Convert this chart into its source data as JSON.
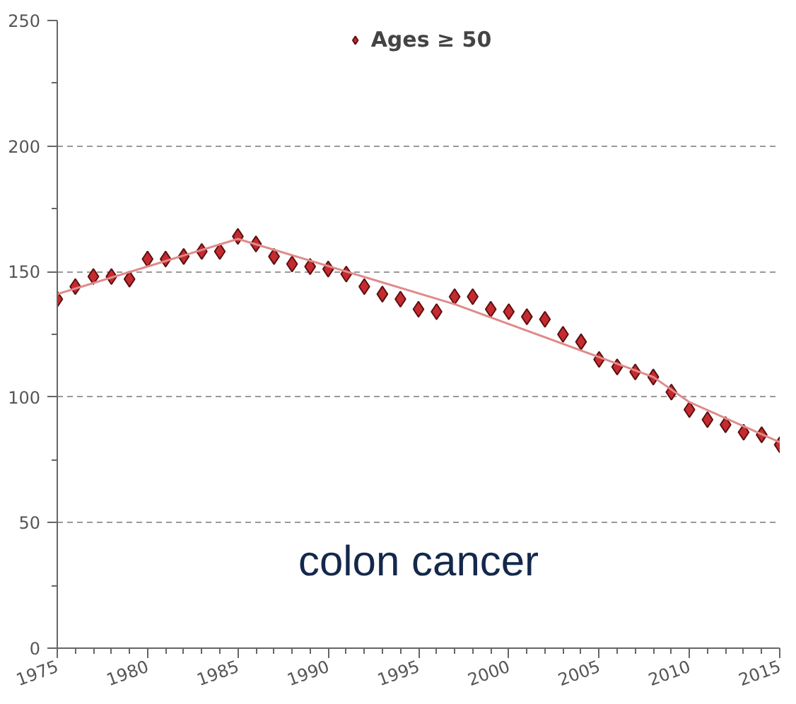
{
  "chart_data": {
    "type": "scatter",
    "x": [
      1975,
      1976,
      1977,
      1978,
      1979,
      1980,
      1981,
      1982,
      1983,
      1984,
      1985,
      1986,
      1987,
      1988,
      1989,
      1990,
      1991,
      1992,
      1993,
      1994,
      1995,
      1996,
      1997,
      1998,
      1999,
      2000,
      2001,
      2002,
      2003,
      2004,
      2005,
      2006,
      2007,
      2008,
      2009,
      2010,
      2011,
      2012,
      2013,
      2014,
      2015
    ],
    "series": [
      {
        "name": "Ages ≥ 50",
        "color": "#c62a2f",
        "marker": "diamond",
        "values": [
          139,
          144,
          148,
          148,
          147,
          155,
          155,
          156,
          158,
          158,
          164,
          161,
          156,
          153,
          152,
          151,
          149,
          144,
          141,
          139,
          135,
          134,
          140,
          140,
          135,
          134,
          132,
          131,
          125,
          122,
          115,
          112,
          110,
          108,
          102,
          95,
          91,
          89,
          86,
          85,
          81
        ]
      },
      {
        "type": "line",
        "color": "#e08a8a",
        "x": [
          1975,
          1985,
          1997,
          2008,
          2010,
          2015
        ],
        "values": [
          141,
          163,
          137,
          108,
          98,
          82
        ]
      }
    ],
    "xlim": [
      1975,
      2015
    ],
    "ylim": [
      0,
      250
    ],
    "xticks": [
      1975,
      1980,
      1985,
      1990,
      1995,
      2000,
      2005,
      2010,
      2015
    ],
    "yticks": [
      0,
      50,
      100,
      150,
      200,
      250
    ],
    "grid": "y",
    "legend": "top",
    "annotations": [
      "colon cancer"
    ]
  }
}
